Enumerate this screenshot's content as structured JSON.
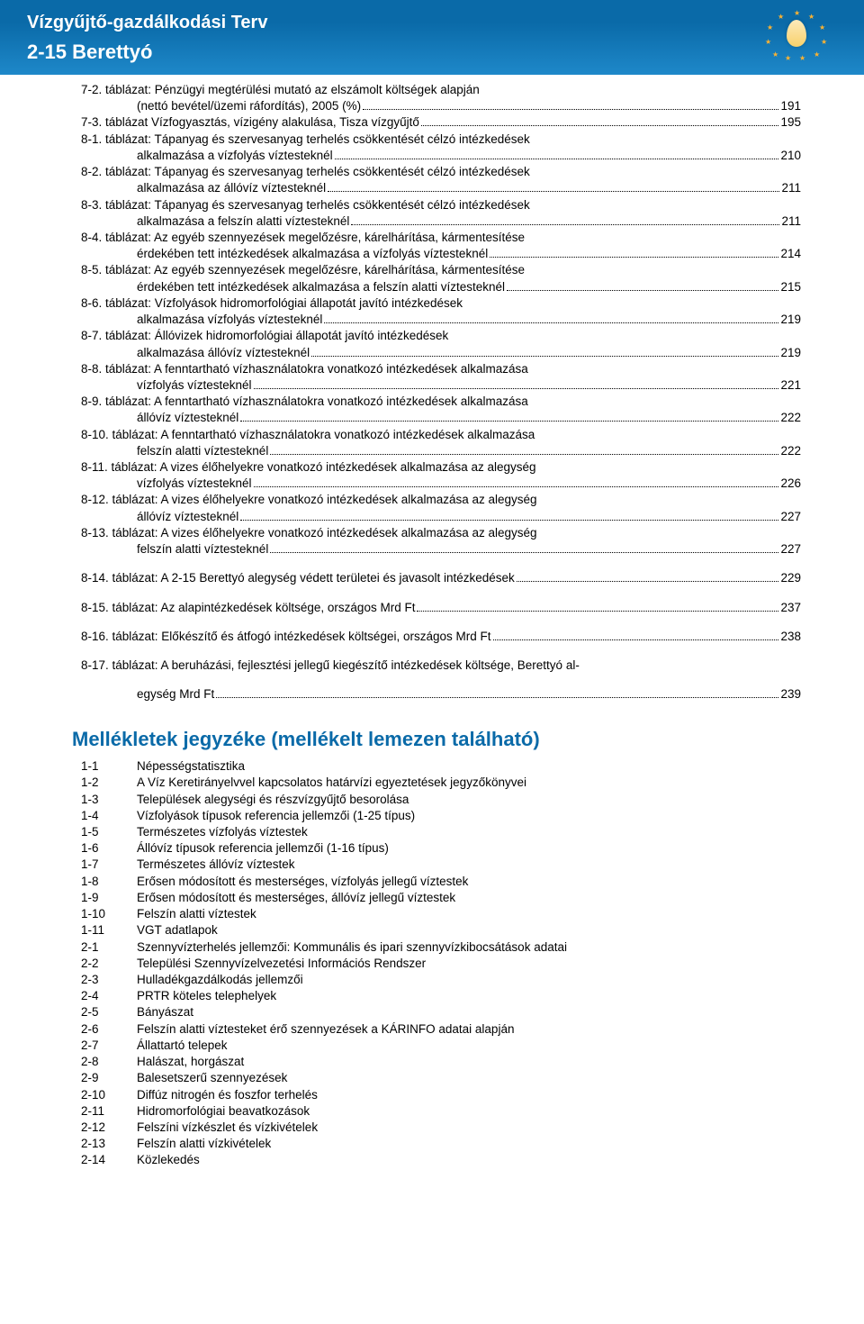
{
  "header": {
    "line1": "Vízgyűjtő-gazdálkodási Terv",
    "line2": "2-15 Berettyó"
  },
  "toc": [
    {
      "label": "7-2. táblázat: Pénzügyi megtérülési mutató az elszámolt költségek alapján",
      "page": null
    },
    {
      "sub": true,
      "label": "(nettó bevétel/üzemi ráfordítás), 2005 (%)",
      "page": "191"
    },
    {
      "label": "7-3. táblázat Vízfogyasztás, vízigény alakulása, Tisza vízgyűjtő",
      "page": "195"
    },
    {
      "label": "8-1. táblázat: Tápanyag és szervesanyag terhelés csökkentését célzó intézkedések",
      "page": null
    },
    {
      "sub": true,
      "label": "alkalmazása a vízfolyás víztesteknél",
      "page": "210"
    },
    {
      "label": "8-2. táblázat: Tápanyag és szervesanyag terhelés csökkentését célzó intézkedések",
      "page": null
    },
    {
      "sub": true,
      "label": "alkalmazása az állóvíz víztesteknél",
      "page": "211"
    },
    {
      "label": "8-3. táblázat: Tápanyag és szervesanyag terhelés csökkentését célzó intézkedések",
      "page": null
    },
    {
      "sub": true,
      "label": "alkalmazása a felszín alatti víztesteknél",
      "page": "211"
    },
    {
      "label": "8-4. táblázat: Az egyéb szennyezések megelőzésre, kárelhárítása, kármentesítése",
      "page": null
    },
    {
      "sub": true,
      "label": "érdekében tett intézkedések alkalmazása a vízfolyás víztesteknél",
      "page": "214"
    },
    {
      "label": "8-5. táblázat: Az egyéb szennyezések megelőzésre, kárelhárítása, kármentesítése",
      "page": null
    },
    {
      "sub": true,
      "label": "érdekében tett intézkedések alkalmazása a felszín alatti víztesteknél",
      "page": "215"
    },
    {
      "label": "8-6. táblázat: Vízfolyások hidromorfológiai állapotát javító intézkedések",
      "page": null
    },
    {
      "sub": true,
      "label": "alkalmazása vízfolyás víztesteknél",
      "page": "219"
    },
    {
      "label": "8-7. táblázat: Állóvizek hidromorfológiai állapotát javító intézkedések",
      "page": null
    },
    {
      "sub": true,
      "label": "alkalmazása állóvíz víztesteknél",
      "page": "219"
    },
    {
      "label": "8-8. táblázat: A fenntartható vízhasználatokra  vonatkozó intézkedések alkalmazása",
      "page": null
    },
    {
      "sub": true,
      "label": "vízfolyás víztesteknél",
      "page": "221"
    },
    {
      "label": "8-9. táblázat: A fenntartható vízhasználatokra  vonatkozó intézkedések alkalmazása",
      "page": null
    },
    {
      "sub": true,
      "label": "állóvíz víztesteknél",
      "page": "222"
    },
    {
      "label": "8-10. táblázat: A fenntartható vízhasználatokra  vonatkozó intézkedések alkalmazása",
      "page": null
    },
    {
      "sub": true,
      "label": "felszín alatti víztesteknél",
      "page": "222"
    },
    {
      "label": "8-11. táblázat: A vizes élőhelyekre vonatkozó intézkedések alkalmazása az alegység",
      "page": null
    },
    {
      "sub": true,
      "label": "vízfolyás víztesteknél",
      "page": "226"
    },
    {
      "label": "8-12. táblázat: A vizes élőhelyekre vonatkozó intézkedések alkalmazása az alegység",
      "page": null
    },
    {
      "sub": true,
      "label": "állóvíz víztesteknél",
      "page": "227"
    },
    {
      "label": "8-13. táblázat: A vizes élőhelyekre vonatkozó intézkedések alkalmazása az alegység",
      "page": null
    },
    {
      "sub": true,
      "label": "felszín alatti víztesteknél",
      "page": "227"
    },
    {
      "spacer": true
    },
    {
      "label": "8-14. táblázat: A 2-15 Berettyó alegység védett területei és javasolt intézkedések",
      "page": "229"
    },
    {
      "spacer": true
    },
    {
      "label": "8-15. táblázat: Az alapintézkedések költsége, országos Mrd Ft",
      "page": "237"
    },
    {
      "spacer": true
    },
    {
      "label": "8-16. táblázat: Előkészítő és átfogó intézkedések költségei, országos Mrd Ft",
      "page": "238"
    },
    {
      "spacer": true
    },
    {
      "label": "8-17. táblázat: A beruházási, fejlesztési jellegű kiegészítő intézkedések költsége, Berettyó al-",
      "page": null
    },
    {
      "spacer": true
    },
    {
      "sub": true,
      "label": "egység Mrd Ft",
      "page": "239"
    }
  ],
  "mell_heading": "Mellékletek jegyzéke (mellékelt lemezen található)",
  "mell": [
    {
      "k": "1-1",
      "v": "Népességstatisztika"
    },
    {
      "k": "1-2",
      "v": "A Víz Keretirányelvvel kapcsolatos határvízi egyeztetések jegyzőkönyvei"
    },
    {
      "k": "1-3",
      "v": "Települések alegységi és részvízgyűjtő besorolása"
    },
    {
      "k": "1-4",
      "v": "Vízfolyások típusok referencia jellemzői (1-25 típus)"
    },
    {
      "k": "1-5",
      "v": "Természetes vízfolyás víztestek"
    },
    {
      "k": "1-6",
      "v": "Állóvíz típusok referencia jellemzői (1-16 típus)"
    },
    {
      "k": "1-7",
      "v": "Természetes állóvíz víztestek"
    },
    {
      "k": "1-8",
      "v": "Erősen módosított és mesterséges, vízfolyás jellegű víztestek"
    },
    {
      "k": "1-9",
      "v": "Erősen módosított és mesterséges, állóvíz jellegű víztestek"
    },
    {
      "k": "1-10",
      "v": "Felszín alatti víztestek"
    },
    {
      "k": "1-11",
      "v": "VGT adatlapok"
    },
    {
      "k": "2-1",
      "v": "Szennyvízterhelés jellemzői: Kommunális és ipari szennyvízkibocsátások adatai"
    },
    {
      "k": "2-2",
      "v": "Települési Szennyvízelvezetési Információs Rendszer"
    },
    {
      "k": "2-3",
      "v": "Hulladékgazdálkodás jellemzői"
    },
    {
      "k": "2-4",
      "v": "PRTR köteles telephelyek"
    },
    {
      "k": "2-5",
      "v": "Bányászat"
    },
    {
      "k": "2-6",
      "v": "Felszín alatti víztesteket érő szennyezések a KÁRINFO adatai alapján"
    },
    {
      "k": "2-7",
      "v": "Állattartó telepek"
    },
    {
      "k": "2-8",
      "v": "Halászat, horgászat"
    },
    {
      "k": "2-9",
      "v": "Balesetszerű szennyezések"
    },
    {
      "k": "2-10",
      "v": "Diffúz nitrogén és foszfor terhelés"
    },
    {
      "k": "2-11",
      "v": "Hidromorfológiai beavatkozások"
    },
    {
      "k": "2-12",
      "v": "Felszíni vízkészlet és vízkivételek"
    },
    {
      "k": "2-13",
      "v": "Felszín alatti vízkivételek"
    },
    {
      "k": "2-14",
      "v": "Közlekedés"
    }
  ]
}
